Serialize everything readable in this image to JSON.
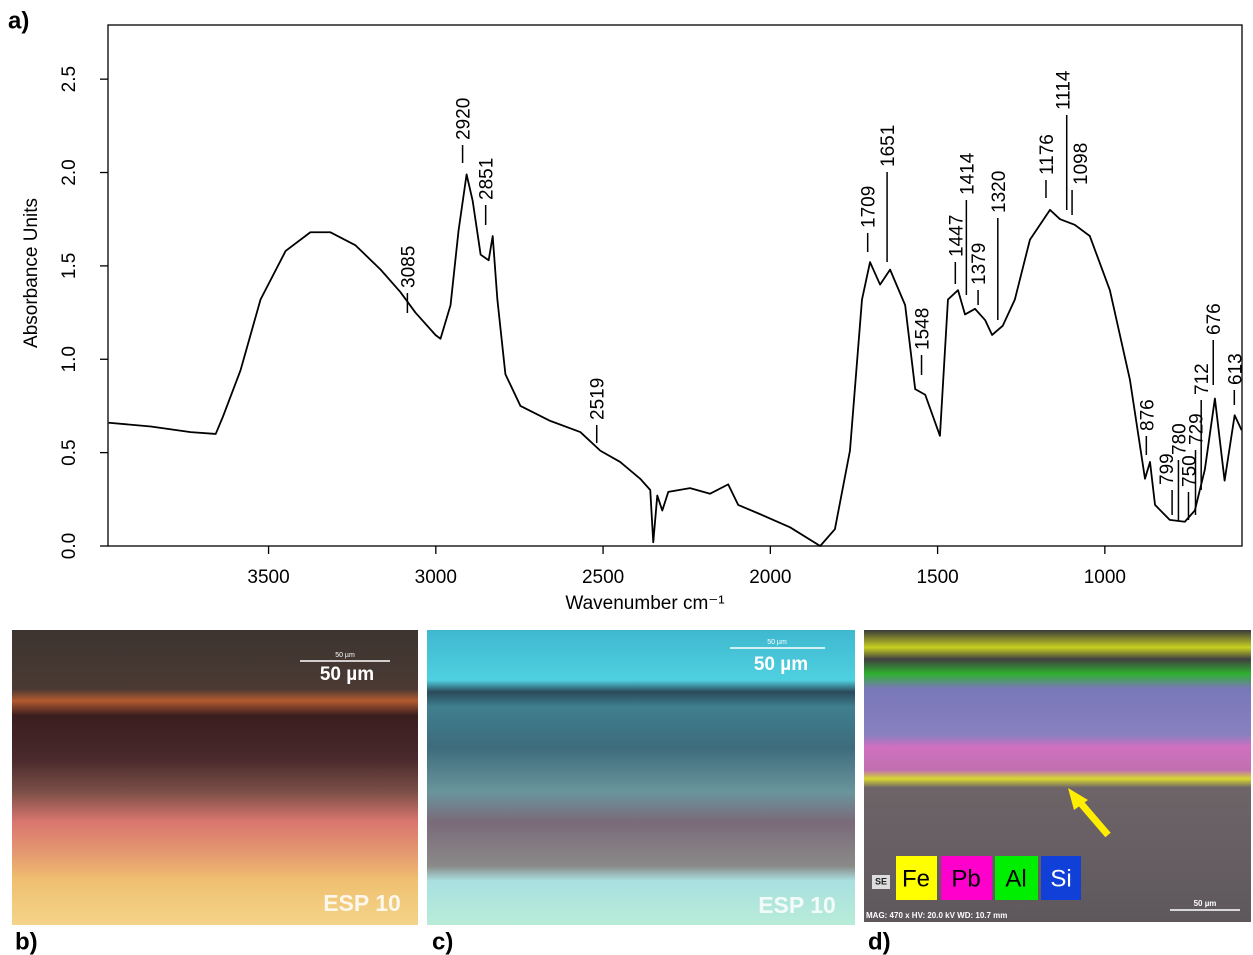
{
  "chart_data": {
    "type": "line",
    "ylabel": "Absorbance Units",
    "xlabel": "Wavenumber cm⁻¹",
    "color": "#000000",
    "xlim": [
      3980,
      590
    ],
    "ylim": [
      0,
      2.79
    ],
    "xticks": [
      3500,
      3000,
      2500,
      2000,
      1500,
      1000
    ],
    "yticks": [
      {
        "value": 0,
        "label": "0.0"
      },
      0.5,
      {
        "value": 1,
        "label": "1.0"
      },
      1.5,
      {
        "value": 2,
        "label": "2.0"
      },
      2.5
    ],
    "x": [
      3978,
      3852,
      3733,
      3658,
      3637,
      3584,
      3524,
      3449,
      3375,
      3315,
      3240,
      3165,
      3106,
      3061,
      3001,
      2986,
      2956,
      2932,
      2908,
      2890,
      2866,
      2842,
      2830,
      2816,
      2792,
      2747,
      2658,
      2568,
      2508,
      2449,
      2389,
      2359,
      2350,
      2338,
      2323,
      2305,
      2240,
      2180,
      2126,
      2096,
      2030,
      1941,
      1851,
      1807,
      1762,
      1726,
      1702,
      1672,
      1642,
      1597,
      1567,
      1537,
      1493,
      1469,
      1439,
      1418,
      1388,
      1358,
      1337,
      1305,
      1269,
      1224,
      1164,
      1134,
      1090,
      1045,
      985,
      925,
      880,
      865,
      850,
      806,
      761,
      731,
      701,
      671,
      642,
      612,
      591
    ],
    "values": [
      0.66,
      0.64,
      0.61,
      0.6,
      0.69,
      0.94,
      1.32,
      1.58,
      1.68,
      1.68,
      1.61,
      1.48,
      1.36,
      1.25,
      1.13,
      1.11,
      1.29,
      1.69,
      1.99,
      1.85,
      1.56,
      1.53,
      1.66,
      1.32,
      0.92,
      0.75,
      0.67,
      0.61,
      0.51,
      0.45,
      0.36,
      0.3,
      0.02,
      0.27,
      0.19,
      0.29,
      0.31,
      0.28,
      0.33,
      0.22,
      0.17,
      0.1,
      0,
      0.09,
      0.51,
      1.32,
      1.52,
      1.4,
      1.48,
      1.29,
      0.84,
      0.81,
      0.59,
      1.32,
      1.37,
      1.24,
      1.27,
      1.21,
      1.13,
      1.18,
      1.32,
      1.64,
      1.8,
      1.75,
      1.72,
      1.66,
      1.37,
      0.89,
      0.36,
      0.45,
      0.22,
      0.14,
      0.13,
      0.19,
      0.41,
      0.79,
      0.35,
      0.7,
      0.62
    ],
    "peak_labels": [
      3085,
      2920,
      2851,
      2519,
      1709,
      1651,
      1548,
      1447,
      1414,
      1379,
      1320,
      1176,
      1114,
      1098,
      876,
      799,
      780,
      750,
      729,
      712,
      676,
      613
    ]
  },
  "panel_labels": [
    "a)",
    "b)",
    "c)",
    "d)"
  ],
  "micrographs": {
    "b": {
      "scale_small": "50 µm",
      "scale": "50 µm",
      "sample": "ESP 10"
    },
    "c": {
      "scale_small": "50 µm",
      "scale": "50 µm",
      "sample": "ESP 10"
    },
    "d": {
      "detector": "SE",
      "elements": [
        "Fe",
        "Pb",
        "Al",
        "Si"
      ],
      "info": "MAG: 470 x  HV: 20.0 kV  WD: 10.7 mm",
      "scale": "50 µm"
    }
  }
}
